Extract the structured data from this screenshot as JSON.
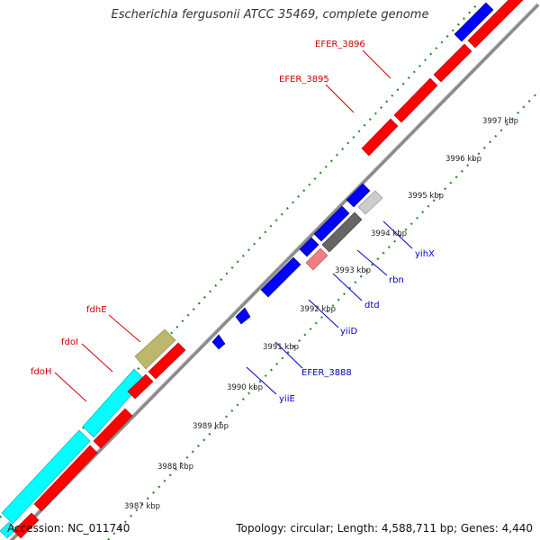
{
  "title": "Escherichia fergusonii ATCC 35469, complete genome",
  "accession": "Accession: NC_011740",
  "summary": "Topology: circular; Length: 4,588,711 bp; Genes: 4,440",
  "colors": {
    "forward": "#ff0000",
    "reverse": "#0000ff",
    "rna": "#00ffff",
    "pseudo": "#bdb76b",
    "grey": "#999999",
    "label_red": "#cc0000",
    "label_blue": "#0000cc",
    "dot_green": "#2a8a2a"
  },
  "tick_labels": [
    "3987 kbp",
    "3988 kbp",
    "3989 kbp",
    "3990 kbp",
    "3991 kbp",
    "3992 kbp",
    "3993 kbp",
    "3994 kbp",
    "3995 kbp",
    "3996 kbp",
    "3997 kbp"
  ],
  "gene_labels": {
    "fdhE": "fdhE",
    "fdoI": "fdoI",
    "fdoH": "fdoH",
    "efer3896": "EFER_3896",
    "efer3895": "EFER_3895",
    "yihX": "yihX",
    "rbn": "rbn",
    "dtd": "dtd",
    "yiiD": "yiiD",
    "efer3888": "EFER_3888",
    "yiiE": "yiiE"
  }
}
